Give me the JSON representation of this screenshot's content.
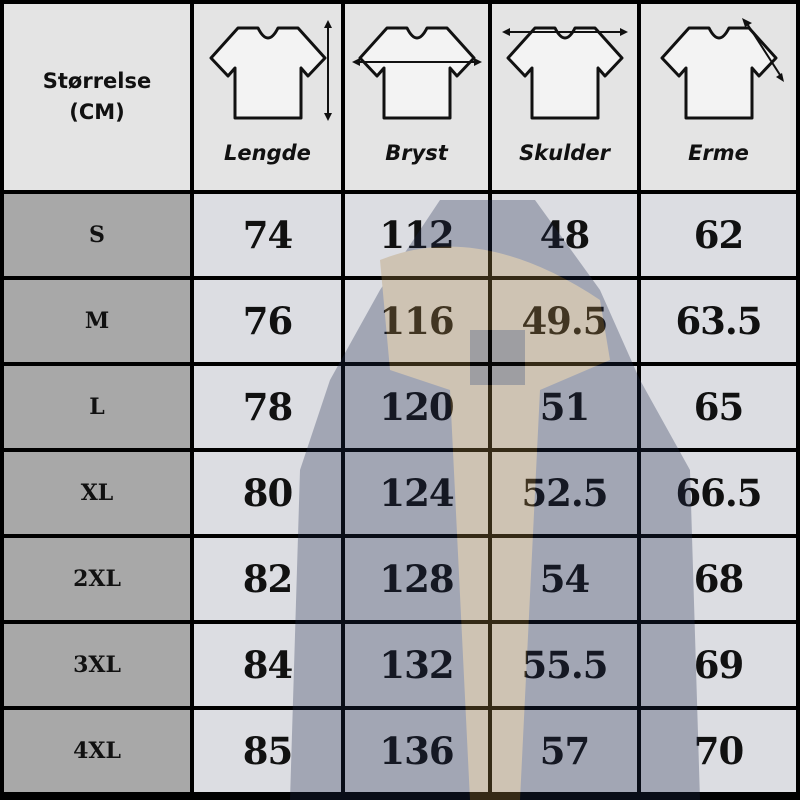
{
  "header": {
    "size_label_line1": "Størrelse",
    "size_label_line2": "(CM)",
    "columns": [
      {
        "label": "Lengde",
        "icon": "tshirt-length-icon"
      },
      {
        "label": "Bryst",
        "icon": "tshirt-chest-icon"
      },
      {
        "label": "Skulder",
        "icon": "tshirt-shoulder-icon"
      },
      {
        "label": "Erme",
        "icon": "tshirt-sleeve-icon"
      }
    ]
  },
  "rows": [
    {
      "size": "S",
      "values": [
        "74",
        "112",
        "48",
        "62"
      ]
    },
    {
      "size": "M",
      "values": [
        "76",
        "116",
        "49.5",
        "63.5"
      ]
    },
    {
      "size": "L",
      "values": [
        "78",
        "120",
        "51",
        "65"
      ]
    },
    {
      "size": "XL",
      "values": [
        "80",
        "124",
        "52.5",
        "66.5"
      ]
    },
    {
      "size": "2XL",
      "values": [
        "82",
        "128",
        "54",
        "68"
      ]
    },
    {
      "size": "3XL",
      "values": [
        "84",
        "132",
        "55.5",
        "69"
      ]
    },
    {
      "size": "4XL",
      "values": [
        "85",
        "136",
        "57",
        "70"
      ]
    }
  ],
  "colors": {
    "header_bg": "#e4e4e4",
    "size_bg": "#a8a8a8",
    "grid_lines": "#000000",
    "jacket": "#1f2b4d",
    "lining": "#b08a4a"
  }
}
